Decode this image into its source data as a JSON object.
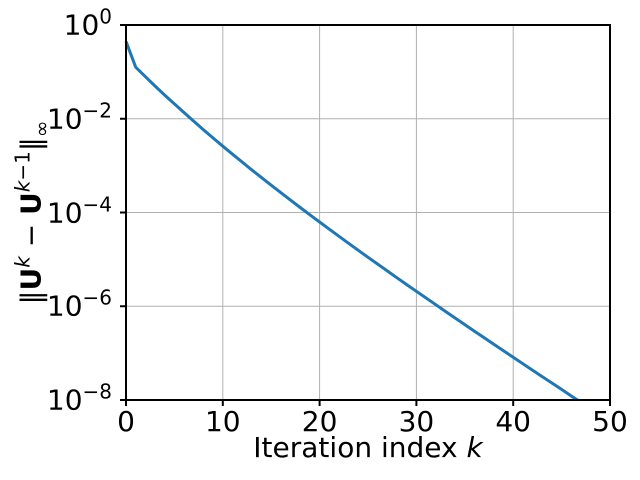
{
  "figure": {
    "background": "#ffffff"
  },
  "chart_data": {
    "type": "line",
    "title": "",
    "xlabel_plain": "Iteration index k",
    "ylabel_plain": "‖U^k − U^(k−1)‖_∞",
    "xlabel_segments": [
      {
        "t": "Iteration index ",
        "s": "n"
      },
      {
        "t": "k",
        "s": "i"
      }
    ],
    "ylabel_segments": [
      {
        "t": "‖",
        "s": "n"
      },
      {
        "t": "U",
        "s": "b"
      },
      {
        "t": "k",
        "s": "si"
      },
      {
        "t": " − ",
        "s": "n"
      },
      {
        "t": "U",
        "s": "b"
      },
      {
        "t": "k",
        "s": "si"
      },
      {
        "t": "−1",
        "s": "sn"
      },
      {
        "t": "‖",
        "s": "n"
      },
      {
        "t": "∞",
        "s": "sub"
      }
    ],
    "xlim": [
      0,
      50
    ],
    "ylim_log10": [
      -8,
      0
    ],
    "x_ticks": [
      0,
      10,
      20,
      30,
      40,
      50
    ],
    "y_ticks": [
      {
        "base": "10",
        "exp": "0",
        "log10": 0
      },
      {
        "base": "10",
        "exp": "−2",
        "log10": -2
      },
      {
        "base": "10",
        "exp": "−4",
        "log10": -4
      },
      {
        "base": "10",
        "exp": "−6",
        "log10": -6
      },
      {
        "base": "10",
        "exp": "−8",
        "log10": -8
      }
    ],
    "grid": true,
    "legend": null,
    "colors": {
      "line": "#1f77b4",
      "grid": "#b0b0b0",
      "axis": "#000000"
    },
    "series": [
      {
        "name": "‖U^k − U^(k−1)‖_∞",
        "x": [
          0,
          1,
          2,
          3,
          4,
          5,
          6,
          7,
          8,
          9,
          10,
          11,
          12,
          13,
          14,
          15,
          16,
          17,
          18,
          19,
          20,
          21,
          22,
          23,
          24,
          25,
          26,
          27,
          28,
          29,
          30,
          31,
          32,
          33,
          34,
          35,
          36,
          37,
          38,
          39,
          40,
          41,
          42,
          43,
          44,
          45,
          46,
          47,
          48
        ],
        "y": [
          0.447,
          0.126,
          0.0789,
          0.05,
          0.032,
          0.0207,
          0.0135,
          0.00883,
          0.00583,
          0.00388,
          0.0026,
          0.00175,
          0.00119,
          0.000811,
          0.000556,
          0.000382,
          0.000264,
          0.000183,
          0.000128,
          8.93e-05,
          6.27e-05,
          4.41e-05,
          3.11e-05,
          2.2e-05,
          1.56e-05,
          1.11e-05,
          7.93e-06,
          5.65e-06,
          4.04e-06,
          2.9e-06,
          2.08e-06,
          1.5e-06,
          1.08e-06,
          7.78e-07,
          5.62e-07,
          4.06e-07,
          2.94e-07,
          2.13e-07,
          1.55e-07,
          1.12e-07,
          8.17e-08,
          5.94e-08,
          4.33e-08,
          3.16e-08,
          2.3e-08,
          1.68e-08,
          1.22e-08,
          8.95e-09,
          6.55e-09
        ]
      }
    ]
  }
}
